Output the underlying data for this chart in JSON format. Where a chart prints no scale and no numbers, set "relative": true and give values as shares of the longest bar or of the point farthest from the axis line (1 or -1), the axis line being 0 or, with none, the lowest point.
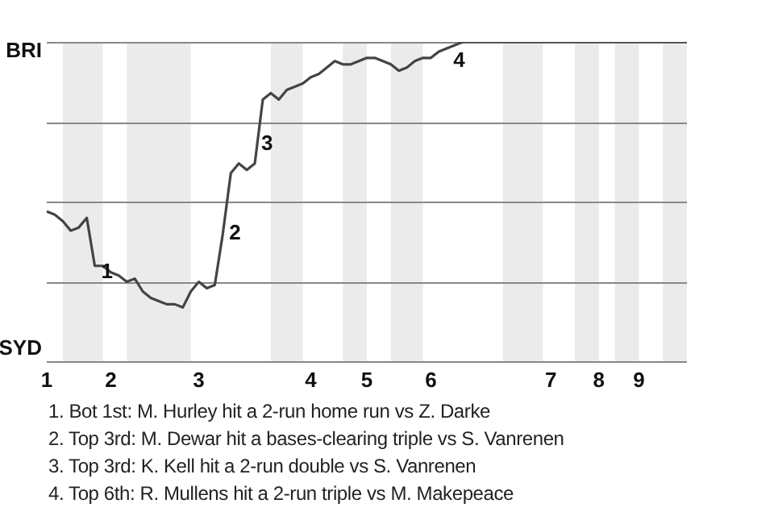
{
  "chart_data": {
    "type": "line",
    "relative": true,
    "categories": [
      "1",
      null,
      null,
      null,
      null,
      null,
      null,
      null,
      "2",
      null,
      null,
      null,
      null,
      null,
      null,
      null,
      null,
      null,
      null,
      "3",
      null,
      null,
      null,
      null,
      null,
      null,
      null,
      null,
      null,
      null,
      null,
      null,
      null,
      "4",
      null,
      null,
      null,
      null,
      null,
      null,
      "5",
      null,
      null,
      null,
      null,
      null,
      null,
      null,
      "6",
      null,
      null,
      null,
      null,
      null,
      null,
      null,
      null,
      null,
      null,
      null,
      null,
      null,
      null,
      "7",
      null,
      null,
      null,
      null,
      null,
      "8",
      null,
      null,
      null,
      null,
      "9",
      null,
      null,
      null,
      null,
      null,
      null
    ],
    "series": [
      {
        "color": "#444444",
        "values": [
          0.47,
          0.46,
          0.44,
          0.41,
          0.42,
          0.45,
          0.3,
          0.3,
          0.28,
          0.27,
          0.25,
          0.26,
          0.22,
          0.2,
          0.19,
          0.18,
          0.18,
          0.17,
          0.22,
          0.25,
          0.23,
          0.24,
          0.4,
          0.59,
          0.62,
          0.6,
          0.62,
          0.82,
          0.84,
          0.82,
          0.85,
          0.86,
          0.87,
          0.89,
          0.9,
          0.92,
          0.94,
          0.93,
          0.93,
          0.94,
          0.95,
          0.95,
          0.94,
          0.93,
          0.91,
          0.92,
          0.94,
          0.95,
          0.95,
          0.97,
          0.98,
          0.99,
          1,
          1,
          1,
          1,
          1,
          1,
          1,
          1,
          1,
          1,
          1,
          1,
          1,
          1,
          1,
          1,
          1,
          1,
          1,
          1,
          1,
          1,
          1,
          1,
          1,
          1,
          1,
          1,
          1
        ]
      }
    ],
    "marker": "none",
    "line_style": "solid",
    "legend": false,
    "ref_lines": [
      {
        "axis": "y",
        "value": 0,
        "color": "#888888"
      },
      {
        "axis": "y",
        "value": 0.25,
        "color": "#888888"
      },
      {
        "axis": "y",
        "value": 0.5,
        "color": "#888888"
      },
      {
        "axis": "y",
        "value": 0.75,
        "color": "#888888"
      },
      {
        "axis": "y",
        "value": 1,
        "color": "#888888"
      }
    ],
    "annotations": [
      "BRI",
      "SYD",
      "1",
      "2",
      "3",
      "4",
      "1. Bot 1st: M. Hurley hit a 2-run home run vs Z. Darke",
      "2. Top 3rd: M. Dewar hit a bases-clearing triple vs S. Vanrenen",
      "3. Top 3rd: K. Kell hit a 2-run double vs S. Vanrenen",
      "4. Top 6th: R. Mullens hit a 2-run triple vs M. Makepeace"
    ]
  }
}
